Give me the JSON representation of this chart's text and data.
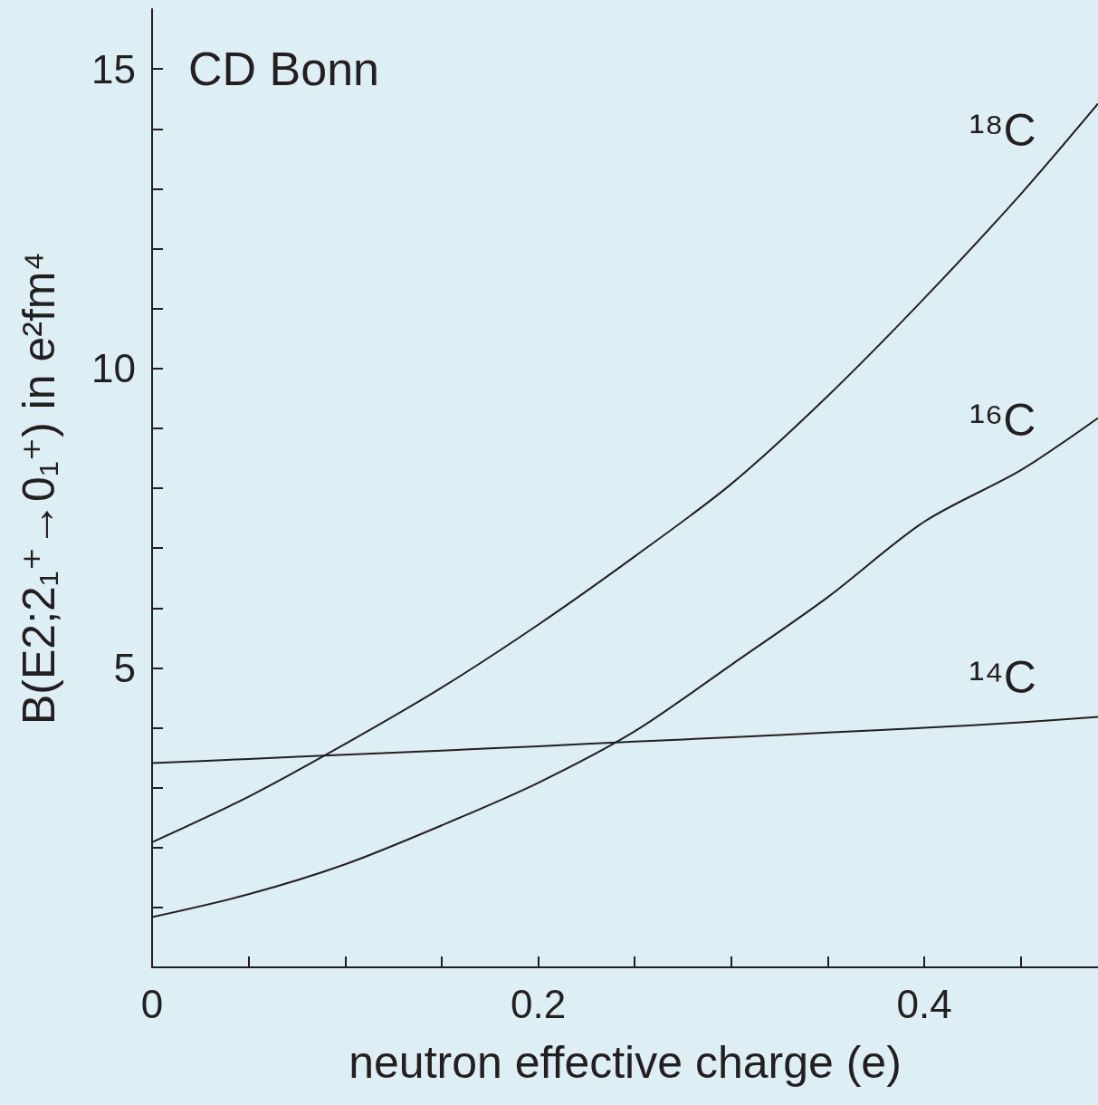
{
  "chart_data": {
    "type": "line",
    "xlabel": "neutron effective charge (e)",
    "ylabel": "B(E2;2₁⁺→0₁⁺) in e²fm⁴",
    "annotations": [
      "CD Bonn"
    ],
    "x": [
      0,
      0.05,
      0.1,
      0.15,
      0.2,
      0.25,
      0.3,
      0.35,
      0.4,
      0.45,
      0.49
    ],
    "series": [
      {
        "name": "¹⁸C",
        "color": "#231f20",
        "values": [
          2.09,
          2.85,
          3.73,
          4.67,
          5.72,
          6.86,
          8.07,
          9.54,
          11.17,
          12.91,
          14.42
        ]
      },
      {
        "name": "¹⁶C",
        "color": "#231f20",
        "values": [
          0.84,
          1.22,
          1.72,
          2.37,
          3.08,
          3.94,
          5.05,
          6.18,
          7.44,
          8.3,
          9.17
        ]
      },
      {
        "name": "¹⁴C",
        "color": "#231f20",
        "values": [
          3.41,
          3.48,
          3.55,
          3.62,
          3.69,
          3.77,
          3.84,
          3.92,
          4.0,
          4.09,
          4.18
        ]
      }
    ],
    "xlim": [
      0,
      0.49
    ],
    "xticks": [
      0,
      {
        "value": 0.05,
        "label": null
      },
      {
        "value": 0.1,
        "label": null
      },
      {
        "value": 0.15,
        "label": null
      },
      0.2,
      {
        "value": 0.25,
        "label": null
      },
      {
        "value": 0.3,
        "label": null
      },
      {
        "value": 0.35,
        "label": null
      },
      0.4,
      {
        "value": 0.45,
        "label": null
      }
    ],
    "ylim": [
      0,
      16
    ],
    "yticks": [
      {
        "value": 1,
        "label": null
      },
      {
        "value": 2,
        "label": null
      },
      {
        "value": 3,
        "label": null
      },
      {
        "value": 4,
        "label": null
      },
      5,
      {
        "value": 6,
        "label": null
      },
      {
        "value": 7,
        "label": null
      },
      {
        "value": 8,
        "label": null
      },
      {
        "value": 9,
        "label": null
      },
      10,
      {
        "value": 11,
        "label": null
      },
      {
        "value": 12,
        "label": null
      },
      {
        "value": 13,
        "label": null
      },
      {
        "value": 14,
        "label": null
      },
      15
    ],
    "grid": false,
    "legend": false,
    "marker": "none",
    "line_style": "solid"
  }
}
